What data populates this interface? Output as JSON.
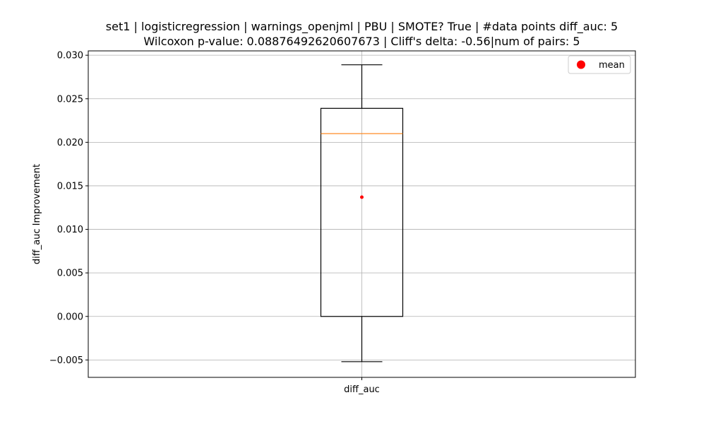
{
  "chart_data": {
    "type": "box",
    "title_lines": [
      "set1 | logisticregression | warnings_openjml | PBU | SMOTE? True | #data points diff_auc: 5",
      "Wilcoxon p-value: 0.08876492620607673 | Cliff's delta: -0.56|num of pairs: 5"
    ],
    "xlabel": "",
    "ylabel": "diff_auc Improvement",
    "categories": [
      "diff_auc"
    ],
    "ylim": [
      -0.007,
      0.0305
    ],
    "yticks": [
      -0.005,
      0.0,
      0.005,
      0.01,
      0.015,
      0.02,
      0.025,
      0.03
    ],
    "ytick_labels": [
      "−0.005",
      "0.000",
      "0.005",
      "0.010",
      "0.015",
      "0.020",
      "0.025",
      "0.030"
    ],
    "grid": true,
    "box": {
      "whisker_low": -0.0052,
      "q1": 0.0,
      "median": 0.021,
      "q3": 0.0239,
      "whisker_high": 0.0289,
      "mean": 0.0137
    },
    "legend": {
      "placement": "top-right",
      "entries": [
        {
          "label": "mean",
          "color": "#ff0000"
        }
      ]
    },
    "colors": {
      "box": "#000000",
      "median": "#ff7f0e",
      "mean": "#ff0000",
      "grid": "#b0b0b0"
    }
  }
}
